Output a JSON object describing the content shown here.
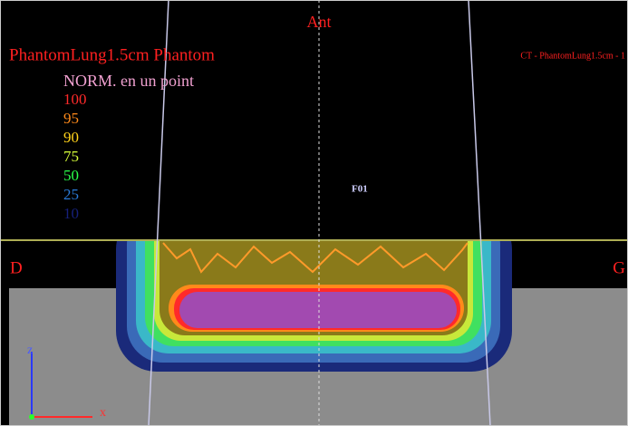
{
  "view": {
    "orientation_top": "Ant",
    "left_label": "D",
    "right_label": "G",
    "title": "PhantomLung1.5cm Phantom",
    "series_label": "CT - PhantomLung1.5cm - 1",
    "beam_label": "F01",
    "axis_z": "z",
    "axis_x": "x"
  },
  "legend": {
    "heading": "NORM. en un point",
    "items": [
      {
        "label": "100",
        "color": "#ff2a2a"
      },
      {
        "label": "95",
        "color": "#ff8a1a"
      },
      {
        "label": "90",
        "color": "#ffd21a"
      },
      {
        "label": "75",
        "color": "#d8ff3a"
      },
      {
        "label": "50",
        "color": "#2aff4a"
      },
      {
        "label": "25",
        "color": "#2a7ad8"
      },
      {
        "label": "10",
        "color": "#16207a"
      }
    ]
  }
}
